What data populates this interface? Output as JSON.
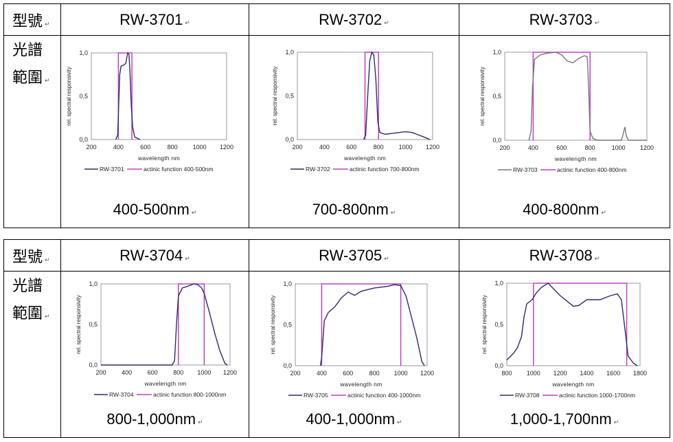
{
  "labels": {
    "model": "型號",
    "range_line1": "光譜",
    "range_line2": "範圍",
    "para_mark": "↵"
  },
  "tables": [
    {
      "models": [
        "RW-3701",
        "RW-3702",
        "RW-3703"
      ],
      "ranges": [
        "400-500nm",
        "700-800nm",
        "400-800nm"
      ]
    },
    {
      "models": [
        "RW-3704",
        "RW-3705",
        "RW-3708"
      ],
      "ranges": [
        "800-1,000nm",
        "400-1,000nm",
        "1,000-1,700nm"
      ]
    }
  ],
  "chart_data": [
    {
      "type": "line",
      "xlabel": "wavelength nm",
      "ylabel": "rel. spectral responsivity",
      "xlim": [
        200,
        1200
      ],
      "xticks": [
        "200",
        "400",
        "600",
        "800",
        "1000",
        "1200"
      ],
      "ylim": [
        0,
        1
      ],
      "yticks": [
        "0,0",
        "0,5",
        "1,0"
      ],
      "series": [
        {
          "name": "RW-3701",
          "color": "#2a2a6e",
          "points": [
            [
              380,
              0
            ],
            [
              395,
              0.05
            ],
            [
              400,
              0.3
            ],
            [
              410,
              0.75
            ],
            [
              420,
              0.85
            ],
            [
              440,
              0.86
            ],
            [
              455,
              0.88
            ],
            [
              465,
              0.97
            ],
            [
              470,
              1
            ],
            [
              478,
              0.98
            ],
            [
              485,
              0.8
            ],
            [
              495,
              0.4
            ],
            [
              505,
              0.15
            ],
            [
              520,
              0.03
            ],
            [
              560,
              0
            ]
          ]
        },
        {
          "name": "actinic  function 400-500nm",
          "color": "#c040c0",
          "band": [
            400,
            500
          ]
        }
      ]
    },
    {
      "type": "line",
      "xlabel": "wavelength nm",
      "ylabel": "rel. spectral responsivity",
      "xlim": [
        200,
        1200
      ],
      "xticks": [
        "200",
        "400",
        "600",
        "800",
        "1000",
        "1200"
      ],
      "ylim": [
        0,
        1
      ],
      "yticks": [
        "0,0",
        "0,5",
        "1,0"
      ],
      "series": [
        {
          "name": "RW-3702",
          "color": "#2a2a6e",
          "points": [
            [
              690,
              0
            ],
            [
              705,
              0.05
            ],
            [
              720,
              0.5
            ],
            [
              735,
              0.9
            ],
            [
              750,
              1
            ],
            [
              765,
              0.97
            ],
            [
              780,
              0.7
            ],
            [
              795,
              0.2
            ],
            [
              810,
              0.08
            ],
            [
              850,
              0.06
            ],
            [
              900,
              0.07
            ],
            [
              950,
              0.08
            ],
            [
              1000,
              0.09
            ],
            [
              1050,
              0.08
            ],
            [
              1100,
              0.05
            ],
            [
              1150,
              0.02
            ],
            [
              1180,
              0
            ]
          ]
        },
        {
          "name": "actinic  function 700-800nm",
          "color": "#c040c0",
          "band": [
            700,
            800
          ]
        }
      ]
    },
    {
      "type": "line",
      "xlabel": "wavelength nm",
      "ylabel": "rel. spectral responsivity",
      "xlim": [
        200,
        1200
      ],
      "xticks": [
        "200",
        "400",
        "600",
        "800",
        "1000",
        "1200"
      ],
      "ylim": [
        0,
        1
      ],
      "yticks": [
        "0,0",
        "0,5",
        "1,0"
      ],
      "series": [
        {
          "name": "RW-3703",
          "color": "#777777",
          "points": [
            [
              370,
              0
            ],
            [
              385,
              0.1
            ],
            [
              395,
              0.6
            ],
            [
              410,
              0.92
            ],
            [
              450,
              0.97
            ],
            [
              500,
              0.99
            ],
            [
              560,
              1
            ],
            [
              600,
              0.97
            ],
            [
              640,
              0.9
            ],
            [
              680,
              0.88
            ],
            [
              720,
              0.93
            ],
            [
              760,
              0.96
            ],
            [
              780,
              0.95
            ],
            [
              790,
              0.6
            ],
            [
              800,
              0.1
            ],
            [
              820,
              0.02
            ],
            [
              850,
              0
            ],
            [
              1020,
              0
            ],
            [
              1030,
              0.05
            ],
            [
              1045,
              0.15
            ],
            [
              1055,
              0.05
            ],
            [
              1070,
              0
            ],
            [
              1200,
              0
            ]
          ]
        },
        {
          "name": "actinic  function 400-800nm",
          "color": "#c040c0",
          "band": [
            400,
            800
          ]
        }
      ]
    },
    {
      "type": "line",
      "xlabel": "wavelength nm",
      "ylabel": "rel. spectral responsivity",
      "xlim": [
        200,
        1200
      ],
      "xticks": [
        "200",
        "400",
        "600",
        "800",
        "1000",
        "1200"
      ],
      "ylim": [
        0,
        1
      ],
      "yticks": [
        "0,0",
        "0,5",
        "1,0"
      ],
      "series": [
        {
          "name": "RW-3704",
          "color": "#2a2a6e",
          "points": [
            [
              200,
              0
            ],
            [
              750,
              0
            ],
            [
              770,
              0.05
            ],
            [
              785,
              0.5
            ],
            [
              800,
              0.85
            ],
            [
              830,
              0.95
            ],
            [
              870,
              0.97
            ],
            [
              920,
              1
            ],
            [
              950,
              0.99
            ],
            [
              980,
              0.95
            ],
            [
              1000,
              0.88
            ],
            [
              1040,
              0.65
            ],
            [
              1080,
              0.4
            ],
            [
              1120,
              0.18
            ],
            [
              1160,
              0.02
            ],
            [
              1180,
              0
            ]
          ]
        },
        {
          "name": "actinic  function 800-1000nm",
          "color": "#c040c0",
          "band": [
            800,
            1000
          ]
        }
      ]
    },
    {
      "type": "line",
      "xlabel": "wavelength nm",
      "ylabel": "rel. spectral responsivity",
      "xlim": [
        200,
        1200
      ],
      "xticks": [
        "200",
        "400",
        "600",
        "800",
        "1000",
        "1200"
      ],
      "ylim": [
        0,
        1
      ],
      "yticks": [
        "0,0",
        "0,5",
        "1,0"
      ],
      "series": [
        {
          "name": "RW-3705",
          "color": "#2a2a6e",
          "points": [
            [
              390,
              0
            ],
            [
              400,
              0.1
            ],
            [
              420,
              0.55
            ],
            [
              450,
              0.65
            ],
            [
              500,
              0.72
            ],
            [
              550,
              0.83
            ],
            [
              600,
              0.9
            ],
            [
              650,
              0.86
            ],
            [
              700,
              0.91
            ],
            [
              800,
              0.95
            ],
            [
              900,
              0.97
            ],
            [
              950,
              0.99
            ],
            [
              1000,
              0.98
            ],
            [
              1040,
              0.85
            ],
            [
              1080,
              0.6
            ],
            [
              1120,
              0.35
            ],
            [
              1160,
              0.05
            ],
            [
              1180,
              0
            ]
          ]
        },
        {
          "name": "actinic  function 400-1000nm",
          "color": "#c040c0",
          "band": [
            400,
            1000
          ]
        }
      ]
    },
    {
      "type": "line",
      "xlabel": "wavelength nm",
      "ylabel": "rel. spectral responsivity",
      "xlim": [
        800,
        1800
      ],
      "xticks": [
        "800",
        "1000",
        "1200",
        "1400",
        "1600",
        "1800"
      ],
      "ylim": [
        0,
        1
      ],
      "yticks": [
        "0,0",
        "0,5",
        "1,0"
      ],
      "series": [
        {
          "name": "RW-3708",
          "color": "#2a2a6e",
          "points": [
            [
              800,
              0.07
            ],
            [
              850,
              0.15
            ],
            [
              880,
              0.22
            ],
            [
              910,
              0.35
            ],
            [
              930,
              0.6
            ],
            [
              950,
              0.75
            ],
            [
              990,
              0.8
            ],
            [
              1020,
              0.88
            ],
            [
              1060,
              0.95
            ],
            [
              1110,
              1
            ],
            [
              1200,
              0.85
            ],
            [
              1300,
              0.72
            ],
            [
              1340,
              0.73
            ],
            [
              1400,
              0.8
            ],
            [
              1500,
              0.8
            ],
            [
              1580,
              0.85
            ],
            [
              1630,
              0.87
            ],
            [
              1660,
              0.8
            ],
            [
              1690,
              0.4
            ],
            [
              1710,
              0.12
            ],
            [
              1750,
              0.03
            ],
            [
              1780,
              0
            ]
          ]
        },
        {
          "name": "actinic  function 1000-1700nm",
          "color": "#c040c0",
          "band": [
            1000,
            1700
          ]
        }
      ]
    }
  ]
}
